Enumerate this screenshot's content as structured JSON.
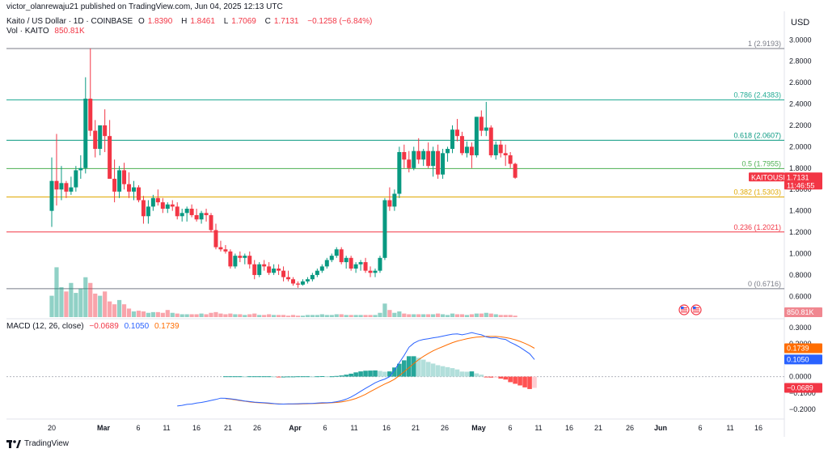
{
  "published_line": "victor_olanrewaju21 published on TradingView.com, Jun 04, 2025 12:13 UTC",
  "currency": "USD",
  "symbol_line": {
    "name": "Kaito / US Dollar · 1D · COINBASE",
    "o_label": "O",
    "o": "1.8390",
    "h_label": "H",
    "h": "1.8461",
    "l_label": "L",
    "l": "1.7069",
    "c_label": "C",
    "c": "1.7131",
    "change": "−0.1258 (−6.84%)"
  },
  "volume_line": {
    "label": "Vol · KAITO",
    "value": "850.81K"
  },
  "macd_line": {
    "label": "MACD (12, 26, close)",
    "hist": "−0.0689",
    "macd": "0.1050",
    "signal": "0.1739"
  },
  "price_tag": {
    "symbol": "KAITOUSD",
    "price": "1.7131",
    "countdown": "11:46:55"
  },
  "volume_tag": "850.81K",
  "macd_tags": {
    "signal": "0.1739",
    "macd": "0.1050",
    "hist": "−0.0689"
  },
  "footer": "TradingView",
  "colors": {
    "up": "#089981",
    "down": "#f23645",
    "macd": "#2962ff",
    "signal": "#ff6d00"
  },
  "chart_data": {
    "type": "candlestick",
    "y_ticks": [
      "3.0000",
      "2.8000",
      "2.6000",
      "2.4000",
      "2.2000",
      "2.0000",
      "1.8000",
      "1.6000",
      "1.4000",
      "1.2000",
      "1.0000",
      "0.8000",
      "0.6000"
    ],
    "ylim": [
      0.58,
      3.04
    ],
    "macd_ticks": [
      "0.3000",
      "0.2000",
      "0.1000",
      "0.0000",
      "−0.1000",
      "−0.2000"
    ],
    "macd_ylim": [
      -0.24,
      0.33
    ],
    "x_labels": [
      "20",
      "Mar",
      "6",
      "11",
      "16",
      "21",
      "26",
      "Apr",
      "6",
      "11",
      "16",
      "21",
      "26",
      "May",
      "6",
      "11",
      "16",
      "21",
      "26",
      "Jun",
      "6",
      "11",
      "16"
    ],
    "fib_levels": [
      {
        "label": "1 (2.9193)",
        "value": 2.9193,
        "color": "#787b86"
      },
      {
        "label": "0.786 (2.4383)",
        "value": 2.4383,
        "color": "#22ab94"
      },
      {
        "label": "0.618 (2.0607)",
        "value": 2.0607,
        "color": "#089981"
      },
      {
        "label": "0.5 (1.7955)",
        "value": 1.7955,
        "color": "#4caf50"
      },
      {
        "label": "0.382 (1.5303)",
        "value": 1.5303,
        "color": "#e0a800"
      },
      {
        "label": "0.236 (1.2021)",
        "value": 1.2021,
        "color": "#f23645"
      },
      {
        "label": "0 (0.6716)",
        "value": 0.6716,
        "color": "#787b86"
      }
    ],
    "candles": [
      [
        1.4,
        1.9,
        1.25,
        1.68
      ],
      [
        1.68,
        2.12,
        1.45,
        1.6
      ],
      [
        1.6,
        1.82,
        1.5,
        1.66
      ],
      [
        1.66,
        1.68,
        1.52,
        1.58
      ],
      [
        1.58,
        1.72,
        1.55,
        1.62
      ],
      [
        1.62,
        1.82,
        1.58,
        1.78
      ],
      [
        1.78,
        1.92,
        1.7,
        1.8
      ],
      [
        1.8,
        2.65,
        1.75,
        2.45
      ],
      [
        2.45,
        2.92,
        2.1,
        2.15
      ],
      [
        2.15,
        2.25,
        1.9,
        1.98
      ],
      [
        1.98,
        2.2,
        1.92,
        2.2
      ],
      [
        2.2,
        2.35,
        1.95,
        2.1
      ],
      [
        2.1,
        2.25,
        1.7,
        1.7
      ],
      [
        1.7,
        1.88,
        1.48,
        1.58
      ],
      [
        1.58,
        1.82,
        1.52,
        1.78
      ],
      [
        1.78,
        1.85,
        1.6,
        1.65
      ],
      [
        1.65,
        1.76,
        1.52,
        1.58
      ],
      [
        1.58,
        1.68,
        1.5,
        1.62
      ],
      [
        1.62,
        1.64,
        1.48,
        1.5
      ],
      [
        1.5,
        1.54,
        1.28,
        1.35
      ],
      [
        1.35,
        1.5,
        1.28,
        1.44
      ],
      [
        1.44,
        1.55,
        1.4,
        1.52
      ],
      [
        1.52,
        1.6,
        1.45,
        1.48
      ],
      [
        1.48,
        1.52,
        1.38,
        1.42
      ],
      [
        1.42,
        1.48,
        1.38,
        1.46
      ],
      [
        1.46,
        1.5,
        1.4,
        1.44
      ],
      [
        1.44,
        1.48,
        1.32,
        1.35
      ],
      [
        1.35,
        1.42,
        1.3,
        1.38
      ],
      [
        1.38,
        1.44,
        1.3,
        1.42
      ],
      [
        1.42,
        1.46,
        1.34,
        1.36
      ],
      [
        1.36,
        1.42,
        1.3,
        1.32
      ],
      [
        1.32,
        1.4,
        1.28,
        1.38
      ],
      [
        1.38,
        1.42,
        1.3,
        1.36
      ],
      [
        1.36,
        1.38,
        1.2,
        1.22
      ],
      [
        1.22,
        1.28,
        1.04,
        1.06
      ],
      [
        1.06,
        1.12,
        1.02,
        1.04
      ],
      [
        1.04,
        1.08,
        1.0,
        1.02
      ],
      [
        1.02,
        1.04,
        0.86,
        0.88
      ],
      [
        0.88,
        1.0,
        0.86,
        0.98
      ],
      [
        0.98,
        1.02,
        0.92,
        0.96
      ],
      [
        0.96,
        1.0,
        0.9,
        0.98
      ],
      [
        0.98,
        1.02,
        0.86,
        0.9
      ],
      [
        0.9,
        0.94,
        0.76,
        0.8
      ],
      [
        0.8,
        0.92,
        0.78,
        0.9
      ],
      [
        0.9,
        0.94,
        0.84,
        0.88
      ],
      [
        0.88,
        0.92,
        0.8,
        0.82
      ],
      [
        0.82,
        0.9,
        0.8,
        0.86
      ],
      [
        0.86,
        0.9,
        0.8,
        0.84
      ],
      [
        0.84,
        0.88,
        0.74,
        0.78
      ],
      [
        0.78,
        0.84,
        0.74,
        0.76
      ],
      [
        0.76,
        0.78,
        0.7,
        0.72
      ],
      [
        0.72,
        0.74,
        0.68,
        0.71
      ],
      [
        0.71,
        0.76,
        0.7,
        0.74
      ],
      [
        0.74,
        0.78,
        0.72,
        0.76
      ],
      [
        0.76,
        0.82,
        0.74,
        0.8
      ],
      [
        0.8,
        0.86,
        0.78,
        0.84
      ],
      [
        0.84,
        0.9,
        0.82,
        0.88
      ],
      [
        0.88,
        0.96,
        0.86,
        0.94
      ],
      [
        0.94,
        1.0,
        0.92,
        0.98
      ],
      [
        0.98,
        1.06,
        0.96,
        1.04
      ],
      [
        1.04,
        1.06,
        0.9,
        0.92
      ],
      [
        0.92,
        0.98,
        0.86,
        0.96
      ],
      [
        0.96,
        0.98,
        0.84,
        0.86
      ],
      [
        0.86,
        0.92,
        0.82,
        0.9
      ],
      [
        0.9,
        0.94,
        0.84,
        0.92
      ],
      [
        0.92,
        0.96,
        0.82,
        0.84
      ],
      [
        0.84,
        0.88,
        0.78,
        0.82
      ],
      [
        0.82,
        0.86,
        0.78,
        0.84
      ],
      [
        0.84,
        0.98,
        0.82,
        0.96
      ],
      [
        0.96,
        1.52,
        0.94,
        1.5
      ],
      [
        1.5,
        1.62,
        1.4,
        1.44
      ],
      [
        1.44,
        1.6,
        1.4,
        1.56
      ],
      [
        1.56,
        2.0,
        1.52,
        1.95
      ],
      [
        1.95,
        2.02,
        1.8,
        1.88
      ],
      [
        1.88,
        1.96,
        1.76,
        1.8
      ],
      [
        1.8,
        2.0,
        1.78,
        1.96
      ],
      [
        1.96,
        2.08,
        1.84,
        1.88
      ],
      [
        1.88,
        1.98,
        1.82,
        1.96
      ],
      [
        1.96,
        2.04,
        1.8,
        1.82
      ],
      [
        1.82,
        2.0,
        1.72,
        1.96
      ],
      [
        1.96,
        2.02,
        1.7,
        1.74
      ],
      [
        1.74,
        1.98,
        1.7,
        1.94
      ],
      [
        1.94,
        2.0,
        1.86,
        1.98
      ],
      [
        1.98,
        2.2,
        1.94,
        2.16
      ],
      [
        2.16,
        2.26,
        2.05,
        2.1
      ],
      [
        2.1,
        2.14,
        1.92,
        1.94
      ],
      [
        1.94,
        2.05,
        1.9,
        2.0
      ],
      [
        2.0,
        2.04,
        1.8,
        1.92
      ],
      [
        1.92,
        2.28,
        1.9,
        2.28
      ],
      [
        2.28,
        2.34,
        2.1,
        2.15
      ],
      [
        2.15,
        2.42,
        2.1,
        2.18
      ],
      [
        2.18,
        2.2,
        1.9,
        1.92
      ],
      [
        1.92,
        2.05,
        1.88,
        2.02
      ],
      [
        2.02,
        2.06,
        1.9,
        1.94
      ],
      [
        1.94,
        2.02,
        1.82,
        1.92
      ],
      [
        1.92,
        1.95,
        1.8,
        1.84
      ],
      [
        1.84,
        1.85,
        1.7,
        1.71
      ]
    ],
    "volume": [
      [
        0.3,
        1
      ],
      [
        0.7,
        1
      ],
      [
        0.42,
        1
      ],
      [
        0.36,
        0
      ],
      [
        0.48,
        1
      ],
      [
        0.34,
        1
      ],
      [
        0.4,
        1
      ],
      [
        0.56,
        1
      ],
      [
        0.48,
        0
      ],
      [
        0.33,
        0
      ],
      [
        0.3,
        1
      ],
      [
        0.36,
        0
      ],
      [
        0.22,
        0
      ],
      [
        0.18,
        0
      ],
      [
        0.24,
        1
      ],
      [
        0.18,
        0
      ],
      [
        0.12,
        0
      ],
      [
        0.08,
        1
      ],
      [
        0.09,
        0
      ],
      [
        0.08,
        0
      ],
      [
        0.06,
        1
      ],
      [
        0.07,
        1
      ],
      [
        0.07,
        0
      ],
      [
        0.06,
        0
      ],
      [
        0.1,
        0
      ],
      [
        0.06,
        1
      ],
      [
        0.05,
        0
      ],
      [
        0.04,
        1
      ],
      [
        0.04,
        1
      ],
      [
        0.04,
        0
      ],
      [
        0.04,
        0
      ],
      [
        0.05,
        1
      ],
      [
        0.04,
        0
      ],
      [
        0.06,
        0
      ],
      [
        0.07,
        0
      ],
      [
        0.05,
        0
      ],
      [
        0.04,
        0
      ],
      [
        0.05,
        0
      ],
      [
        0.04,
        1
      ],
      [
        0.04,
        0
      ],
      [
        0.03,
        1
      ],
      [
        0.04,
        0
      ],
      [
        0.05,
        0
      ],
      [
        0.03,
        1
      ],
      [
        0.03,
        0
      ],
      [
        0.04,
        0
      ],
      [
        0.03,
        1
      ],
      [
        0.03,
        0
      ],
      [
        0.03,
        0
      ],
      [
        0.02,
        0
      ],
      [
        0.03,
        0
      ],
      [
        0.02,
        0
      ],
      [
        0.02,
        1
      ],
      [
        0.03,
        1
      ],
      [
        0.03,
        1
      ],
      [
        0.03,
        1
      ],
      [
        0.04,
        1
      ],
      [
        0.03,
        1
      ],
      [
        0.03,
        1
      ],
      [
        0.04,
        1
      ],
      [
        0.04,
        0
      ],
      [
        0.03,
        1
      ],
      [
        0.03,
        0
      ],
      [
        0.03,
        1
      ],
      [
        0.03,
        1
      ],
      [
        0.03,
        0
      ],
      [
        0.03,
        0
      ],
      [
        0.03,
        1
      ],
      [
        0.06,
        1
      ],
      [
        0.19,
        1
      ],
      [
        0.1,
        0
      ],
      [
        0.06,
        1
      ],
      [
        0.08,
        1
      ],
      [
        0.05,
        0
      ],
      [
        0.04,
        0
      ],
      [
        0.04,
        1
      ],
      [
        0.04,
        0
      ],
      [
        0.04,
        1
      ],
      [
        0.04,
        0
      ],
      [
        0.04,
        1
      ],
      [
        0.05,
        0
      ],
      [
        0.04,
        1
      ],
      [
        0.03,
        1
      ],
      [
        0.05,
        1
      ],
      [
        0.04,
        0
      ],
      [
        0.04,
        0
      ],
      [
        0.03,
        1
      ],
      [
        0.04,
        0
      ],
      [
        0.05,
        1
      ],
      [
        0.05,
        0
      ],
      [
        0.06,
        1
      ],
      [
        0.05,
        0
      ],
      [
        0.04,
        1
      ],
      [
        0.03,
        0
      ],
      [
        0.03,
        0
      ],
      [
        0.03,
        0
      ],
      [
        0.02,
        0
      ]
    ],
    "macd": [
      null,
      null,
      null,
      null,
      null,
      null,
      null,
      null,
      null,
      null,
      null,
      null,
      null,
      null,
      null,
      null,
      null,
      null,
      null,
      null,
      null,
      null,
      null,
      null,
      null,
      null,
      -0.18,
      -0.176,
      -0.17,
      -0.168,
      -0.162,
      -0.158,
      -0.153,
      -0.146,
      -0.14,
      -0.132,
      -0.133,
      -0.136,
      -0.14,
      -0.145,
      -0.15,
      -0.153,
      -0.156,
      -0.158,
      -0.16,
      -0.162,
      -0.165,
      -0.168,
      -0.168,
      -0.167,
      -0.167,
      -0.166,
      -0.165,
      -0.164,
      -0.164,
      -0.162,
      -0.16,
      -0.16,
      -0.158,
      -0.154,
      -0.148,
      -0.138,
      -0.125,
      -0.108,
      -0.09,
      -0.072,
      -0.055,
      -0.038,
      -0.025,
      -0.015,
      0.0,
      0.04,
      0.085,
      0.13,
      0.18,
      0.205,
      0.22,
      0.228,
      0.232,
      0.238,
      0.242,
      0.248,
      0.254,
      0.26,
      0.262,
      0.256,
      0.262,
      0.27,
      0.262,
      0.256,
      0.244,
      0.238,
      0.24,
      0.232,
      0.228,
      0.21,
      0.196,
      0.18,
      0.16,
      0.14,
      0.105
    ],
    "signal": [
      null,
      null,
      null,
      null,
      null,
      null,
      null,
      null,
      null,
      null,
      null,
      null,
      null,
      null,
      null,
      null,
      null,
      null,
      null,
      null,
      null,
      null,
      null,
      null,
      null,
      null,
      null,
      null,
      null,
      null,
      null,
      null,
      null,
      null,
      null,
      null,
      -0.135,
      -0.138,
      -0.142,
      -0.147,
      -0.151,
      -0.155,
      -0.158,
      -0.16,
      -0.162,
      -0.164,
      -0.166,
      -0.167,
      -0.168,
      -0.168,
      -0.168,
      -0.168,
      -0.167,
      -0.166,
      -0.165,
      -0.164,
      -0.163,
      -0.162,
      -0.16,
      -0.158,
      -0.155,
      -0.15,
      -0.143,
      -0.134,
      -0.122,
      -0.108,
      -0.092,
      -0.076,
      -0.06,
      -0.045,
      -0.032,
      -0.016,
      0.006,
      0.03,
      0.055,
      0.08,
      0.104,
      0.124,
      0.142,
      0.158,
      0.172,
      0.184,
      0.196,
      0.208,
      0.218,
      0.225,
      0.232,
      0.238,
      0.242,
      0.244,
      0.246,
      0.246,
      0.246,
      0.244,
      0.24,
      0.234,
      0.226,
      0.216,
      0.204,
      0.19,
      0.174
    ],
    "histogram": [
      null,
      null,
      null,
      null,
      null,
      null,
      null,
      null,
      null,
      null,
      null,
      null,
      null,
      null,
      null,
      null,
      null,
      null,
      null,
      null,
      null,
      null,
      null,
      null,
      null,
      null,
      null,
      null,
      null,
      null,
      null,
      null,
      null,
      null,
      null,
      null,
      0.002,
      0.002,
      0.002,
      0.002,
      0.001,
      0.002,
      0.002,
      0.002,
      0.002,
      0.002,
      0.001,
      -0.001,
      0.0,
      0.001,
      0.001,
      0.002,
      0.002,
      0.002,
      0.001,
      0.002,
      0.003,
      0.002,
      0.002,
      0.004,
      0.007,
      0.012,
      0.018,
      0.026,
      0.032,
      0.036,
      0.037,
      0.038,
      0.035,
      0.03,
      0.032,
      0.056,
      0.079,
      0.1,
      0.125,
      0.125,
      0.116,
      0.104,
      0.09,
      0.08,
      0.07,
      0.064,
      0.058,
      0.052,
      0.044,
      0.031,
      0.03,
      0.032,
      0.02,
      0.012,
      -0.002,
      -0.006,
      -0.006,
      -0.012,
      -0.018,
      -0.034,
      -0.044,
      -0.054,
      -0.066,
      -0.076,
      -0.0689
    ]
  }
}
